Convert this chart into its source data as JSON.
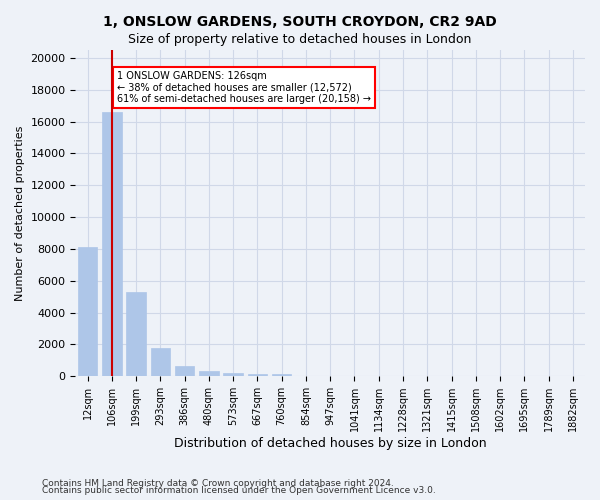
{
  "title1": "1, ONSLOW GARDENS, SOUTH CROYDON, CR2 9AD",
  "title2": "Size of property relative to detached houses in London",
  "xlabel": "Distribution of detached houses by size in London",
  "ylabel": "Number of detached properties",
  "footer1": "Contains HM Land Registry data © Crown copyright and database right 2024.",
  "footer2": "Contains public sector information licensed under the Open Government Licence v3.0.",
  "annotation_line1": "1 ONSLOW GARDENS: 126sqm",
  "annotation_line2": "← 38% of detached houses are smaller (12,572)",
  "annotation_line3": "61% of semi-detached houses are larger (20,158) →",
  "property_size_sqm": 126,
  "bar_categories": [
    "12sqm",
    "106sqm",
    "199sqm",
    "293sqm",
    "386sqm",
    "480sqm",
    "573sqm",
    "667sqm",
    "760sqm",
    "854sqm",
    "947sqm",
    "1041sqm",
    "1134sqm",
    "1228sqm",
    "1321sqm",
    "1415sqm",
    "1508sqm",
    "1602sqm",
    "1695sqm",
    "1789sqm",
    "1882sqm"
  ],
  "bar_values": [
    8100,
    16600,
    5300,
    1800,
    650,
    320,
    190,
    150,
    120,
    0,
    0,
    0,
    0,
    0,
    0,
    0,
    0,
    0,
    0,
    0,
    0
  ],
  "bar_color": "#aec6e8",
  "bar_edge_color": "#aec6e8",
  "vline_color": "#cc0000",
  "vline_x": 1,
  "ylim": [
    0,
    20500
  ],
  "yticks": [
    0,
    2000,
    4000,
    6000,
    8000,
    10000,
    12000,
    14000,
    16000,
    18000,
    20000
  ],
  "grid_color": "#d0d8e8",
  "background_color": "#eef2f8",
  "plot_bg_color": "#eef2f8"
}
